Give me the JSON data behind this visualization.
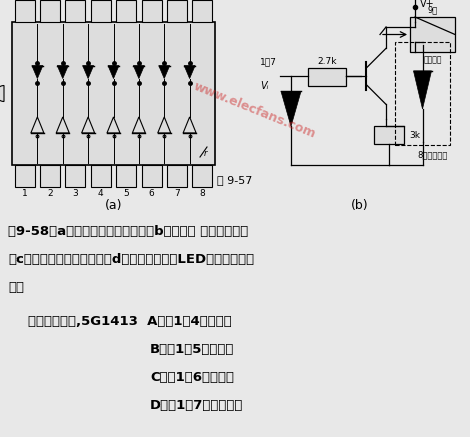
{
  "bg_color": "#e8e8e8",
  "watermark_text": "www.elecfans.com",
  "watermark_color": "#cc2222",
  "watermark_alpha": 0.45,
  "fig_caption": "图 9-57",
  "label_a": "(a)",
  "label_b": "(b)",
  "text_line1": "图9-58（a）为驱动继电器电路；（b）为驱动 指示灯电路；",
  "text_line2": "（c）为驱动晶体灯电路；（d）为驱动共阳极LED七段显示器电",
  "text_line3": "路。",
  "text_line4": "值得注意的是,5G1413  A档为1～4路是好的",
  "text_line5": "B档为1～5路是好的",
  "text_line6": "C档为1～6路是好的",
  "text_line7": "D档为1～7路是好的。"
}
